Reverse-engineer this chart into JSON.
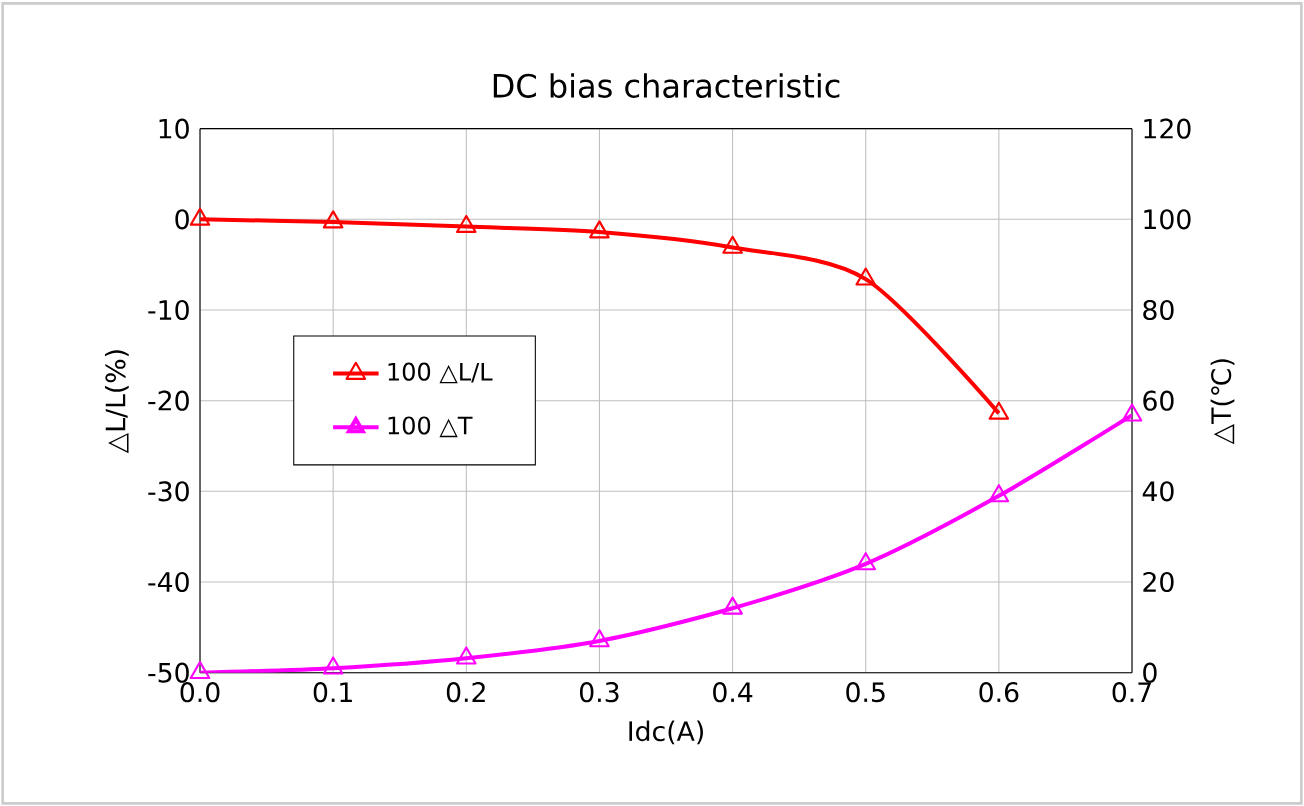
{
  "chart_data": {
    "type": "line",
    "title": "DC bias characteristic",
    "xlabel": "Idc(A)",
    "ylabel": "△L/L(%)",
    "y2label": "△T(℃)",
    "x": [
      0.0,
      0.1,
      0.2,
      0.3,
      0.4,
      0.5,
      0.6,
      0.7
    ],
    "series": [
      {
        "name": "100 △L/L",
        "color": "#ff0000",
        "values": [
          0,
          -0.3,
          -0.8,
          -1.4,
          -3.1,
          -6.6,
          -21.4,
          null
        ]
      },
      {
        "name": "100 △T",
        "color": "#ff00ff",
        "axis": "y2",
        "values": [
          0,
          1,
          3.2,
          7,
          14.2,
          24,
          39,
          56.8
        ]
      }
    ],
    "xlim": [
      0,
      0.7
    ],
    "xticks": [
      {
        "value": 0,
        "label": "0.0"
      },
      {
        "value": 0.1,
        "label": "0.1"
      },
      {
        "value": 0.2,
        "label": "0.2"
      },
      {
        "value": 0.3,
        "label": "0.3"
      },
      {
        "value": 0.4,
        "label": "0.4"
      },
      {
        "value": 0.5,
        "label": "0.5"
      },
      {
        "value": 0.6,
        "label": "0.6"
      },
      {
        "value": 0.7,
        "label": "0.7"
      }
    ],
    "ylim": [
      -50,
      10
    ],
    "yticks": [
      -50,
      -40,
      -30,
      -20,
      -10,
      0,
      10
    ],
    "y2lim": [
      0,
      120
    ],
    "y2ticks": [
      0,
      20,
      40,
      60,
      80,
      100,
      120
    ],
    "grid": true,
    "legend": "left",
    "marker": "triangle",
    "line_style": "solid"
  }
}
